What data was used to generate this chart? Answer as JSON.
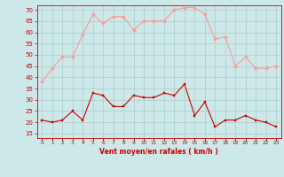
{
  "hours": [
    0,
    1,
    2,
    3,
    4,
    5,
    6,
    7,
    8,
    9,
    10,
    11,
    12,
    13,
    14,
    15,
    16,
    17,
    18,
    19,
    20,
    21,
    22,
    23
  ],
  "avg_wind": [
    21,
    20,
    21,
    25,
    21,
    33,
    32,
    27,
    27,
    32,
    31,
    31,
    33,
    32,
    37,
    23,
    29,
    18,
    21,
    21,
    23,
    21,
    20,
    18
  ],
  "gust_wind": [
    38,
    44,
    49,
    49,
    59,
    68,
    64,
    67,
    67,
    61,
    65,
    65,
    65,
    70,
    71,
    71,
    68,
    57,
    58,
    45,
    49,
    44,
    44,
    45
  ],
  "xlabel": "Vent moyen/en rafales ( km/h )",
  "yticks": [
    15,
    20,
    25,
    30,
    35,
    40,
    45,
    50,
    55,
    60,
    65,
    70
  ],
  "ymin": 13,
  "ymax": 72,
  "bg_color": "#cce8e8",
  "grid_color": "#aacccc",
  "line_avg_color": "#cc0000",
  "line_gust_color": "#ff9999",
  "xlabel_color": "#cc0000",
  "tick_color": "#cc0000"
}
